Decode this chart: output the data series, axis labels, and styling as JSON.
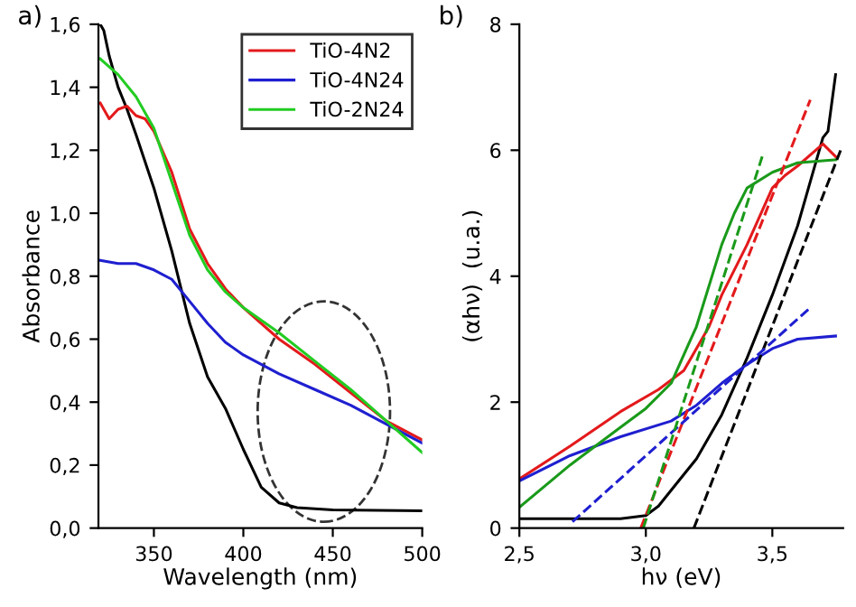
{
  "chart_data": [
    {
      "type": "line",
      "title": "a)",
      "xlabel": "Wavelength (nm)",
      "ylabel": "Absorbance",
      "xlim": [
        319,
        500
      ],
      "ylim": [
        0,
        1.6
      ],
      "xticks": [
        350,
        400,
        450,
        500
      ],
      "yticks": [
        {
          "value": 0,
          "label": "0,0"
        },
        {
          "value": 0.2,
          "label": "0,2"
        },
        {
          "value": 0.4,
          "label": "0,4"
        },
        {
          "value": 0.6,
          "label": "0,6"
        },
        {
          "value": 0.8,
          "label": "0,8"
        },
        {
          "value": 1.0,
          "label": "1,0"
        },
        {
          "value": 1.2,
          "label": "1,2"
        },
        {
          "value": 1.4,
          "label": "1,4"
        },
        {
          "value": 1.6,
          "label": "1,6"
        }
      ],
      "legend": "top right",
      "grid": false,
      "series": [
        {
          "color": "#000000",
          "x": [
            320,
            322,
            325,
            330,
            335,
            340,
            350,
            360,
            370,
            380,
            390,
            400,
            410,
            420,
            430,
            450,
            500
          ],
          "values": [
            1.6,
            1.58,
            1.5,
            1.4,
            1.33,
            1.25,
            1.08,
            0.88,
            0.65,
            0.48,
            0.38,
            0.25,
            0.13,
            0.08,
            0.065,
            0.058,
            0.055
          ]
        },
        {
          "name": "TiO-4N2",
          "color": "#e31a1c",
          "x": [
            320,
            325,
            330,
            335,
            340,
            345,
            350,
            360,
            370,
            380,
            390,
            400,
            420,
            440,
            460,
            480,
            500
          ],
          "values": [
            1.35,
            1.3,
            1.33,
            1.34,
            1.31,
            1.3,
            1.26,
            1.13,
            0.95,
            0.84,
            0.76,
            0.7,
            0.6,
            0.52,
            0.43,
            0.34,
            0.28
          ]
        },
        {
          "name": "TiO-4N24",
          "color": "#1f1fd0",
          "x": [
            320,
            330,
            340,
            350,
            360,
            370,
            380,
            390,
            400,
            420,
            440,
            460,
            480,
            500
          ],
          "values": [
            0.85,
            0.84,
            0.84,
            0.82,
            0.79,
            0.72,
            0.65,
            0.59,
            0.55,
            0.49,
            0.44,
            0.39,
            0.33,
            0.27
          ]
        },
        {
          "name": "TiO-2N24",
          "color": "#22cc22",
          "x": [
            320,
            330,
            340,
            350,
            360,
            370,
            380,
            390,
            400,
            420,
            440,
            460,
            480,
            500
          ],
          "values": [
            1.49,
            1.44,
            1.37,
            1.27,
            1.1,
            0.93,
            0.82,
            0.75,
            0.7,
            0.62,
            0.53,
            0.44,
            0.34,
            0.24
          ]
        }
      ]
    },
    {
      "type": "line",
      "title": "b)",
      "xlabel": "hν (eV)",
      "ylabel": "(αhν)  (u.a.)",
      "xlim": [
        2.5,
        3.78
      ],
      "ylim": [
        0,
        8
      ],
      "xticks": [
        {
          "value": 2.5,
          "label": "2,5"
        },
        {
          "value": 3.0,
          "label": "3,0"
        },
        {
          "value": 3.5,
          "label": "3,5"
        }
      ],
      "yticks": [
        0,
        2,
        4,
        6,
        8
      ],
      "grid": false,
      "series": [
        {
          "color": "#000000",
          "x": [
            2.5,
            2.9,
            3.0,
            3.05,
            3.1,
            3.2,
            3.3,
            3.4,
            3.5,
            3.6,
            3.65,
            3.7,
            3.72,
            3.75
          ],
          "values": [
            0.15,
            0.15,
            0.2,
            0.35,
            0.6,
            1.1,
            1.8,
            2.7,
            3.7,
            4.8,
            5.5,
            6.2,
            6.3,
            7.2
          ]
        },
        {
          "color": "#e31a1c",
          "x": [
            2.5,
            2.7,
            2.9,
            3.05,
            3.15,
            3.25,
            3.3,
            3.4,
            3.5,
            3.55,
            3.6,
            3.7,
            3.75
          ],
          "values": [
            0.78,
            1.3,
            1.85,
            2.2,
            2.5,
            3.2,
            3.7,
            4.5,
            5.4,
            5.6,
            5.75,
            6.1,
            5.9
          ]
        },
        {
          "color": "#1f1fd0",
          "x": [
            2.5,
            2.7,
            2.9,
            3.1,
            3.2,
            3.3,
            3.4,
            3.5,
            3.6,
            3.75
          ],
          "values": [
            0.75,
            1.15,
            1.45,
            1.7,
            1.95,
            2.3,
            2.6,
            2.85,
            3.0,
            3.05
          ]
        },
        {
          "color": "#1a9a1a",
          "x": [
            2.5,
            2.7,
            2.9,
            3.0,
            3.1,
            3.2,
            3.3,
            3.35,
            3.4,
            3.5,
            3.6,
            3.75
          ],
          "values": [
            0.33,
            1.0,
            1.6,
            1.9,
            2.3,
            3.2,
            4.5,
            5.0,
            5.4,
            5.65,
            5.8,
            5.85
          ]
        },
        {
          "color": "#000000",
          "line_style": "dashed",
          "x": [
            3.19,
            3.77
          ],
          "values": [
            0,
            6.0
          ]
        },
        {
          "color": "#e31a1c",
          "line_style": "dashed",
          "x": [
            2.98,
            3.65
          ],
          "values": [
            0,
            6.8
          ]
        },
        {
          "color": "#1f1fd0",
          "line_style": "dashed",
          "x": [
            2.71,
            3.65
          ],
          "values": [
            0.1,
            3.5
          ]
        },
        {
          "color": "#1a9a1a",
          "line_style": "dashed",
          "x": [
            2.99,
            3.46
          ],
          "values": [
            0,
            5.9
          ]
        }
      ]
    }
  ]
}
